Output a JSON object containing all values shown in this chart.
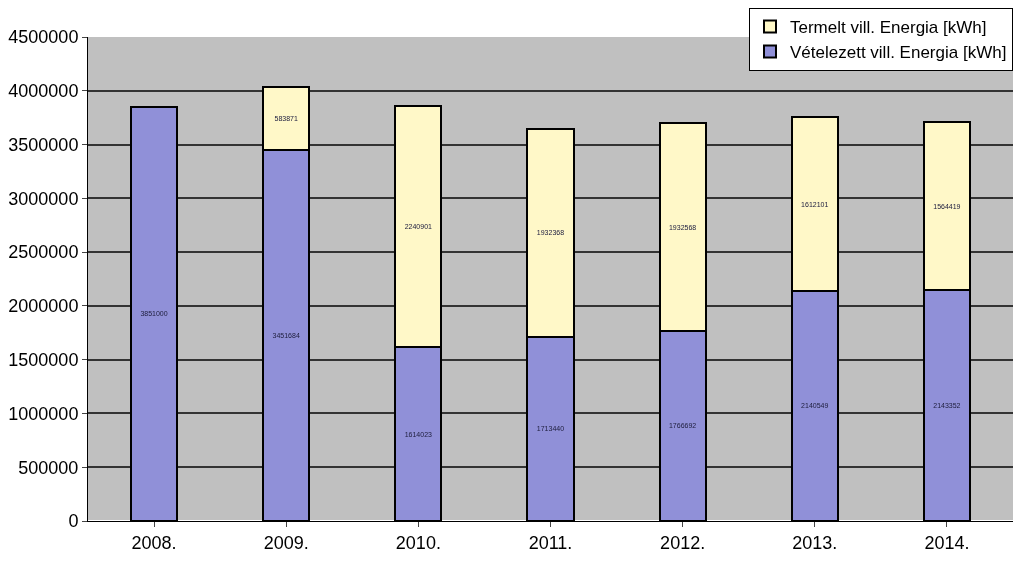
{
  "chart_data": {
    "type": "bar",
    "stacked": true,
    "categories": [
      "2008.",
      "2009.",
      "2010.",
      "2011.",
      "2012.",
      "2013.",
      "2014."
    ],
    "series": [
      {
        "name": "Vételezett vill. Energia [kWh]",
        "color": "#9090d8",
        "values": [
          3851000,
          3451684,
          1614023,
          1713440,
          1766692,
          2140549,
          2143352
        ],
        "value_labels": [
          "3851000",
          "3451684",
          "1614023",
          "1713440",
          "1766692",
          "2140549",
          "2143352"
        ]
      },
      {
        "name": "Termelt vill. Energia [kWh]",
        "color": "#fff8c8",
        "values": [
          null,
          583871,
          2240901,
          1932368,
          1932568,
          1612101,
          1564419
        ],
        "value_labels": [
          null,
          "583871",
          "2240901",
          "1932368",
          "1932568",
          "1612101",
          "1564419"
        ]
      }
    ],
    "ylim": [
      0,
      4500000
    ],
    "yticks": [
      0,
      500000,
      1000000,
      1500000,
      2000000,
      2500000,
      3000000,
      3500000,
      4000000,
      4500000
    ],
    "grid": "y",
    "legend": "top right"
  }
}
